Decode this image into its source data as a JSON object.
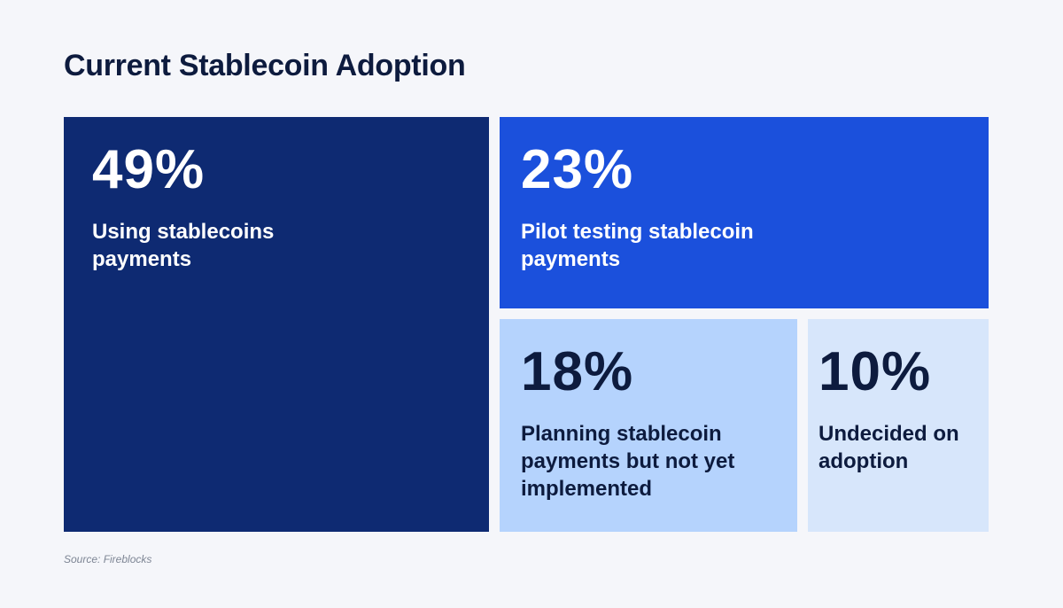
{
  "chart_data": {
    "type": "treemap",
    "title": "Current Stablecoin Adoption",
    "unit": "%",
    "cells": [
      {
        "value": 49,
        "value_label": "49%",
        "label": "Using stablecoins payments",
        "color": "#0e2a72",
        "text_color": "#ffffff"
      },
      {
        "value": 23,
        "value_label": "23%",
        "label": "Pilot testing stablecoin payments",
        "color": "#1b50dc",
        "text_color": "#ffffff"
      },
      {
        "value": 18,
        "value_label": "18%",
        "label": "Planning stablecoin payments but not yet implemented",
        "color": "#b5d3fd",
        "text_color": "#0d1b3e"
      },
      {
        "value": 10,
        "value_label": "10%",
        "label": "Undecided on adoption",
        "color": "#d7e6fb",
        "text_color": "#0d1b3e"
      }
    ],
    "source": "Source: Fireblocks"
  }
}
